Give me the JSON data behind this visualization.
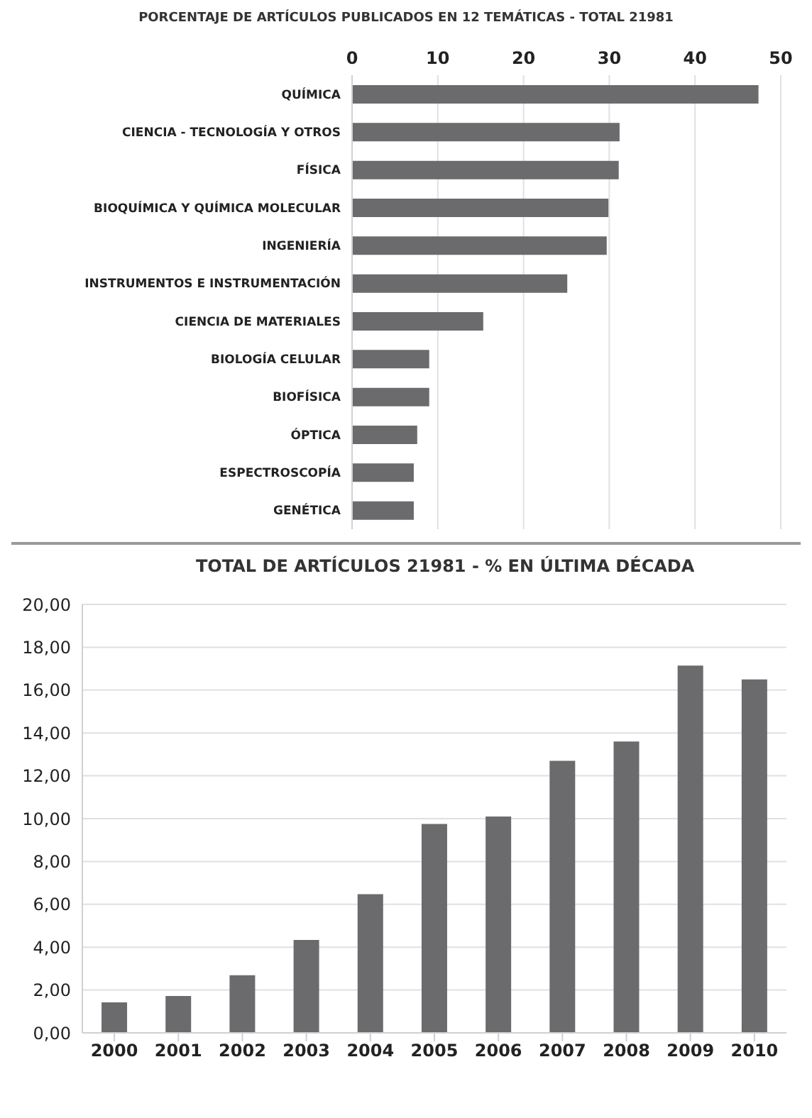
{
  "chart_data": [
    {
      "type": "bar",
      "orientation": "horizontal",
      "title": "PORCENTAJE DE ARTÍCULOS PUBLICADOS EN 12 TEMÁTICAS -  TOTAL 21981",
      "categories": [
        "QUÍMICA",
        "CIENCIA - TECNOLOGÍA Y OTROS",
        "FÍSICA",
        "BIOQUÍMICA Y QUÍMICA MOLECULAR",
        "INGENIERÍA",
        "INSTRUMENTOS E INSTRUMENTACIÓN",
        "CIENCIA DE MATERIALES",
        "BIOLOGÍA CELULAR",
        "BIOFÍSICA",
        "ÓPTICA",
        "ESPECTROSCOPÍA",
        "GENÉTICA"
      ],
      "values": [
        47.4,
        31.2,
        31.1,
        29.9,
        29.7,
        25.1,
        15.3,
        9.0,
        9.0,
        7.6,
        7.2,
        7.2
      ],
      "color": "#6b6b6d",
      "xlim": [
        0,
        50
      ],
      "xticks": [
        0,
        10,
        20,
        30,
        40,
        50
      ],
      "grid": "x"
    },
    {
      "type": "bar",
      "title": "TOTAL DE ARTÍCULOS 21981 - % EN ÚLTIMA DÉCADA",
      "categories": [
        "2000",
        "2001",
        "2002",
        "2003",
        "2004",
        "2005",
        "2006",
        "2007",
        "2008",
        "2009",
        "2010"
      ],
      "values": [
        1.42,
        1.72,
        2.69,
        4.34,
        6.47,
        9.75,
        10.1,
        12.7,
        13.6,
        17.14,
        16.5
      ],
      "color": "#6b6b6d",
      "ylim": [
        0,
        20
      ],
      "yticks": [
        {
          "value": 0,
          "label": "0,00"
        },
        {
          "value": 2,
          "label": "2,00"
        },
        {
          "value": 4,
          "label": "4,00"
        },
        {
          "value": 6,
          "label": "6,00"
        },
        {
          "value": 8,
          "label": "8,00"
        },
        {
          "value": 10,
          "label": "10,00"
        },
        {
          "value": 12,
          "label": "12,00"
        },
        {
          "value": 14,
          "label": "14,00"
        },
        {
          "value": 16,
          "label": "16,00"
        },
        {
          "value": 18,
          "label": "18,00"
        },
        {
          "value": 20,
          "label": "20,00"
        }
      ],
      "grid": "y"
    }
  ]
}
